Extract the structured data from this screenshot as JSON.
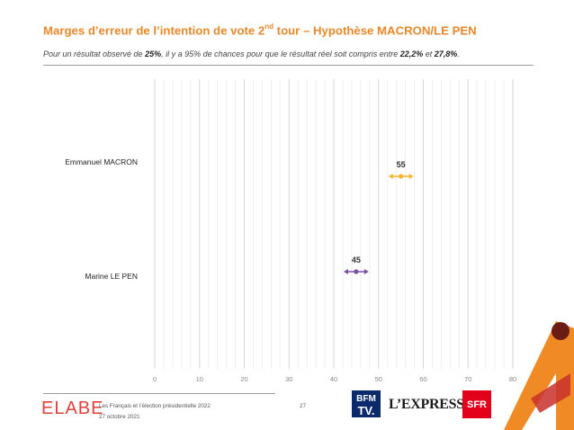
{
  "header": {
    "title_main": "Marges d’erreur de l’intention de vote 2",
    "title_sup": "nd",
    "title_end": " tour – Hypothèse MACRON/LE PEN",
    "subtitle_a": "Pour un résultat observé de ",
    "subtitle_b": "25%",
    "subtitle_c": ", il y a 95% de chances pour que le résultat réel soit compris entre ",
    "subtitle_d": "22,2%",
    "subtitle_e": " et ",
    "subtitle_f": "27,8%",
    "subtitle_g": "."
  },
  "chart_data": {
    "type": "scatter",
    "orientation": "horizontal",
    "categories": [
      "Emmanuel MACRON",
      "Marine LE PEN"
    ],
    "values": [
      55,
      45
    ],
    "value_labels": [
      "55",
      "45"
    ],
    "error_low": [
      52.2,
      42.2
    ],
    "error_high": [
      57.8,
      47.8
    ],
    "colors": [
      "#f2b632",
      "#7b4fa3"
    ],
    "xlim": [
      0,
      80
    ],
    "xticks": [
      "0",
      "10",
      "20",
      "30",
      "40",
      "50",
      "60",
      "70",
      "80"
    ],
    "grid": true,
    "title": "",
    "xlabel": "",
    "ylabel": ""
  },
  "footer": {
    "logo_left": "ELABE",
    "source_line1": "Les Français et l’élection présidentielle 2022",
    "source_line2": "27 octobre 2021",
    "page_number": "27",
    "logo_bfm_top": "BFM",
    "logo_bfm_bottom": "TV.",
    "logo_express": "L’EXPRESS",
    "logo_sfr": "SFR"
  }
}
